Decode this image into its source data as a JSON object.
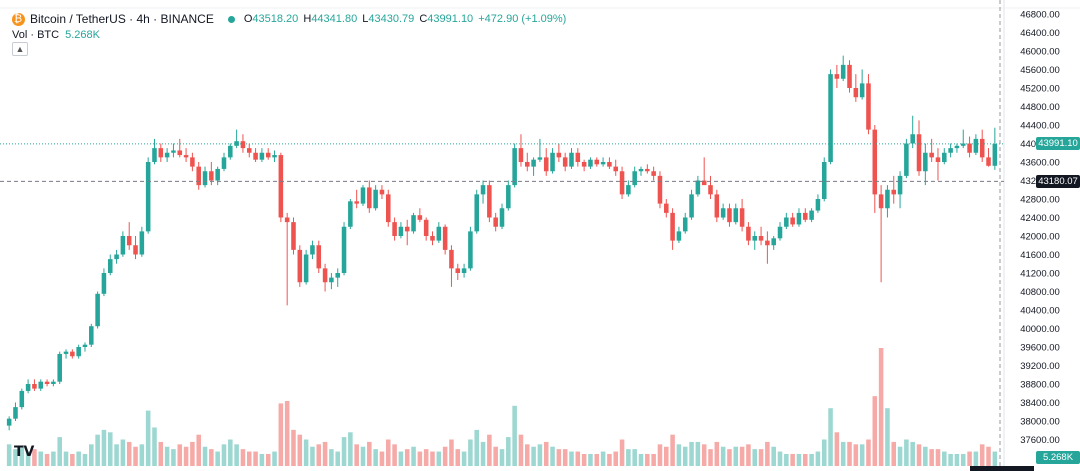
{
  "header": {
    "symbol_title": "Bitcoin / TetherUS · 4h · BINANCE",
    "ohlc": {
      "o_label": "O",
      "o_value": "43518.20",
      "h_label": "H",
      "h_value": "44341.80",
      "l_label": "L",
      "l_value": "43430.79",
      "c_label": "C",
      "c_value": "43991.10",
      "change": "+472.90 (+1.09%)"
    },
    "volume_label": "Vol · BTC",
    "volume_value": "5.268K",
    "collapse_icon": "chevron-up-icon",
    "logo": "TV"
  },
  "colors": {
    "up": "#26a69a",
    "down": "#ef5350",
    "volume_up": "#9dd7d1",
    "volume_down": "#f5aaa8",
    "last_price_tag": "#26a69a",
    "crosshair_tag": "#131722"
  },
  "chart_data": {
    "type": "candlestick",
    "timeframe": "4h",
    "ylim": [
      37200,
      46800
    ],
    "y_ticks": [
      "46800.00",
      "46400.00",
      "46000.00",
      "45600.00",
      "45200.00",
      "44800.00",
      "44400.00",
      "44000.00",
      "43600.00",
      "43200.00",
      "42800.00",
      "42400.00",
      "42000.00",
      "41600.00",
      "41200.00",
      "40800.00",
      "40400.00",
      "40000.00",
      "39600.00",
      "39200.00",
      "38800.00",
      "38400.00",
      "38000.00",
      "37600.00"
    ],
    "last_price": 43991.1,
    "last_price_label": "43991.10",
    "crosshair_price": 43180.07,
    "crosshair_price_label": "43180.07",
    "volume_label": "5.268K",
    "grid": false,
    "candles": [
      [
        37900,
        38100,
        37800,
        38050
      ],
      [
        38050,
        38400,
        38000,
        38300
      ],
      [
        38300,
        38700,
        38250,
        38650
      ],
      [
        38650,
        38900,
        38600,
        38800
      ],
      [
        38800,
        38900,
        38650,
        38700
      ],
      [
        38700,
        38900,
        38650,
        38850
      ],
      [
        38850,
        38900,
        38750,
        38800
      ],
      [
        38800,
        38900,
        38750,
        38850
      ],
      [
        38850,
        39500,
        38800,
        39450
      ],
      [
        39450,
        39550,
        39350,
        39500
      ],
      [
        39500,
        39550,
        39350,
        39400
      ],
      [
        39400,
        39650,
        39350,
        39600
      ],
      [
        39600,
        39700,
        39500,
        39650
      ],
      [
        39650,
        40100,
        39600,
        40050
      ],
      [
        40050,
        40800,
        40000,
        40750
      ],
      [
        40750,
        41300,
        40700,
        41200
      ],
      [
        41200,
        41600,
        41150,
        41500
      ],
      [
        41500,
        41700,
        41400,
        41600
      ],
      [
        41600,
        42100,
        41550,
        42000
      ],
      [
        42000,
        42300,
        41700,
        41800
      ],
      [
        41800,
        42000,
        41500,
        41600
      ],
      [
        41600,
        42200,
        41550,
        42100
      ],
      [
        42100,
        43700,
        42050,
        43600
      ],
      [
        43600,
        44100,
        43550,
        43900
      ],
      [
        43900,
        44000,
        43600,
        43700
      ],
      [
        43700,
        43900,
        43600,
        43800
      ],
      [
        43800,
        44000,
        43700,
        43850
      ],
      [
        43850,
        44100,
        43700,
        43750
      ],
      [
        43750,
        43900,
        43600,
        43700
      ],
      [
        43700,
        43800,
        43400,
        43500
      ],
      [
        43500,
        43600,
        43000,
        43100
      ],
      [
        43100,
        43500,
        43050,
        43400
      ],
      [
        43400,
        43600,
        43100,
        43200
      ],
      [
        43200,
        43500,
        43100,
        43450
      ],
      [
        43450,
        43800,
        43400,
        43700
      ],
      [
        43700,
        44000,
        43650,
        43950
      ],
      [
        43950,
        44300,
        43900,
        44050
      ],
      [
        44050,
        44200,
        43800,
        43900
      ],
      [
        43900,
        44000,
        43700,
        43800
      ],
      [
        43800,
        43900,
        43600,
        43650
      ],
      [
        43650,
        43900,
        43600,
        43800
      ],
      [
        43800,
        43900,
        43650,
        43700
      ],
      [
        43700,
        43850,
        43600,
        43750
      ],
      [
        43750,
        43800,
        42300,
        42400
      ],
      [
        42400,
        42500,
        40500,
        42300
      ],
      [
        42300,
        42400,
        41600,
        41700
      ],
      [
        41700,
        41800,
        40900,
        41000
      ],
      [
        41000,
        41700,
        40950,
        41600
      ],
      [
        41600,
        41900,
        41500,
        41800
      ],
      [
        41800,
        41900,
        41200,
        41300
      ],
      [
        41300,
        41400,
        40800,
        41000
      ],
      [
        41000,
        41200,
        40850,
        41100
      ],
      [
        41100,
        41300,
        40900,
        41200
      ],
      [
        41200,
        42300,
        41150,
        42200
      ],
      [
        42200,
        42800,
        42150,
        42750
      ],
      [
        42750,
        43000,
        42600,
        42700
      ],
      [
        42700,
        43100,
        42650,
        43050
      ],
      [
        43050,
        43200,
        42500,
        42600
      ],
      [
        42600,
        43100,
        42550,
        43000
      ],
      [
        43000,
        43100,
        42800,
        42900
      ],
      [
        42900,
        43000,
        42200,
        42300
      ],
      [
        42300,
        42400,
        41900,
        42000
      ],
      [
        42000,
        42300,
        41950,
        42200
      ],
      [
        42200,
        42350,
        41800,
        42100
      ],
      [
        42100,
        42500,
        42050,
        42450
      ],
      [
        42450,
        42600,
        42300,
        42350
      ],
      [
        42350,
        42400,
        41900,
        42000
      ],
      [
        42000,
        42100,
        41800,
        41900
      ],
      [
        41900,
        42300,
        41850,
        42200
      ],
      [
        42200,
        42250,
        41600,
        41700
      ],
      [
        41700,
        41800,
        40900,
        41300
      ],
      [
        41300,
        41400,
        41050,
        41200
      ],
      [
        41200,
        41400,
        41100,
        41300
      ],
      [
        41300,
        42200,
        41250,
        42100
      ],
      [
        42100,
        43000,
        42050,
        42900
      ],
      [
        42900,
        43200,
        42700,
        43100
      ],
      [
        43100,
        43200,
        42300,
        42400
      ],
      [
        42400,
        42500,
        42100,
        42200
      ],
      [
        42200,
        42700,
        42150,
        42600
      ],
      [
        42600,
        43200,
        42550,
        43100
      ],
      [
        43100,
        44000,
        43050,
        43900
      ],
      [
        43900,
        44200,
        43500,
        43600
      ],
      [
        43600,
        43800,
        43400,
        43500
      ],
      [
        43500,
        43700,
        43300,
        43650
      ],
      [
        43650,
        44100,
        43600,
        43700
      ],
      [
        43700,
        43900,
        43300,
        43400
      ],
      [
        43400,
        43900,
        43350,
        43800
      ],
      [
        43800,
        44000,
        43600,
        43700
      ],
      [
        43700,
        43800,
        43400,
        43500
      ],
      [
        43500,
        43900,
        43450,
        43800
      ],
      [
        43800,
        43900,
        43500,
        43600
      ],
      [
        43600,
        43650,
        43400,
        43500
      ],
      [
        43500,
        43700,
        43450,
        43650
      ],
      [
        43650,
        43700,
        43500,
        43550
      ],
      [
        43550,
        43700,
        43500,
        43600
      ],
      [
        43600,
        43700,
        43450,
        43500
      ],
      [
        43500,
        43650,
        43300,
        43400
      ],
      [
        43400,
        43500,
        42800,
        42900
      ],
      [
        42900,
        43200,
        42850,
        43100
      ],
      [
        43100,
        43500,
        43050,
        43400
      ],
      [
        43400,
        43500,
        43300,
        43450
      ],
      [
        43450,
        43550,
        43350,
        43400
      ],
      [
        43400,
        43500,
        43200,
        43300
      ],
      [
        43300,
        43400,
        42600,
        42700
      ],
      [
        42700,
        42800,
        42400,
        42500
      ],
      [
        42500,
        42600,
        41700,
        41900
      ],
      [
        41900,
        42200,
        41850,
        42100
      ],
      [
        42100,
        42500,
        42050,
        42400
      ],
      [
        42400,
        43000,
        42350,
        42900
      ],
      [
        42900,
        43300,
        42850,
        43200
      ],
      [
        43200,
        43700,
        43150,
        43100
      ],
      [
        43100,
        43300,
        42800,
        42900
      ],
      [
        42900,
        43000,
        42300,
        42400
      ],
      [
        42400,
        42700,
        42350,
        42600
      ],
      [
        42600,
        42700,
        42200,
        42300
      ],
      [
        42300,
        42700,
        42250,
        42600
      ],
      [
        42600,
        42800,
        42100,
        42200
      ],
      [
        42200,
        42300,
        41800,
        41900
      ],
      [
        41900,
        42100,
        41700,
        42000
      ],
      [
        42000,
        42200,
        41800,
        41900
      ],
      [
        41900,
        42100,
        41400,
        41800
      ],
      [
        41800,
        42000,
        41700,
        41950
      ],
      [
        41950,
        42300,
        41900,
        42200
      ],
      [
        42200,
        42500,
        42150,
        42400
      ],
      [
        42400,
        42500,
        42200,
        42250
      ],
      [
        42250,
        42600,
        42200,
        42500
      ],
      [
        42500,
        42600,
        42300,
        42350
      ],
      [
        42350,
        42600,
        42300,
        42550
      ],
      [
        42550,
        42900,
        42500,
        42800
      ],
      [
        42800,
        43700,
        42750,
        43600
      ],
      [
        43600,
        45600,
        43550,
        45500
      ],
      [
        45500,
        45700,
        45200,
        45400
      ],
      [
        45400,
        45900,
        45350,
        45700
      ],
      [
        45700,
        45800,
        45100,
        45200
      ],
      [
        45200,
        45500,
        44900,
        45000
      ],
      [
        45000,
        45600,
        44950,
        45300
      ],
      [
        45300,
        45500,
        44200,
        44300
      ],
      [
        44300,
        44400,
        42500,
        42900
      ],
      [
        42900,
        43100,
        41000,
        42600
      ],
      [
        42600,
        43100,
        42400,
        43000
      ],
      [
        43000,
        43300,
        42700,
        42900
      ],
      [
        42900,
        43400,
        42600,
        43300
      ],
      [
        43300,
        44100,
        43250,
        44000
      ],
      [
        44000,
        44600,
        43900,
        44200
      ],
      [
        44200,
        44500,
        43300,
        43400
      ],
      [
        43400,
        44000,
        43100,
        43800
      ],
      [
        43800,
        44100,
        43600,
        43700
      ],
      [
        43700,
        43900,
        43200,
        43600
      ],
      [
        43600,
        43900,
        43550,
        43800
      ],
      [
        43800,
        44000,
        43700,
        43900
      ],
      [
        43900,
        44000,
        43800,
        43950
      ],
      [
        43950,
        44300,
        43900,
        44000
      ],
      [
        44000,
        44150,
        43700,
        43800
      ],
      [
        43800,
        44200,
        43750,
        44100
      ],
      [
        44100,
        44300,
        43600,
        43700
      ],
      [
        43700,
        43900,
        43500,
        43518
      ],
      [
        43518,
        44341,
        43430,
        43991
      ]
    ],
    "volume": [
      0.9,
      0.7,
      0.8,
      0.6,
      0.7,
      0.6,
      0.5,
      0.6,
      1.2,
      0.6,
      0.5,
      0.6,
      0.5,
      0.9,
      1.3,
      1.5,
      1.4,
      0.9,
      1.1,
      1.0,
      0.8,
      0.9,
      2.3,
      1.6,
      1.0,
      0.8,
      0.7,
      0.9,
      0.8,
      1.0,
      1.3,
      0.8,
      0.7,
      0.6,
      0.9,
      1.1,
      0.9,
      0.7,
      0.6,
      0.6,
      0.5,
      0.5,
      0.6,
      2.6,
      2.7,
      1.5,
      1.3,
      1.1,
      0.8,
      0.9,
      1.0,
      0.7,
      0.6,
      1.2,
      1.4,
      0.9,
      0.8,
      1.0,
      0.7,
      0.6,
      1.1,
      0.9,
      0.6,
      0.7,
      0.8,
      0.6,
      0.7,
      0.6,
      0.6,
      0.8,
      1.1,
      0.7,
      0.6,
      1.1,
      1.5,
      1.0,
      1.3,
      0.8,
      0.7,
      1.2,
      2.5,
      1.3,
      0.9,
      0.8,
      0.9,
      1.0,
      0.8,
      0.7,
      0.7,
      0.6,
      0.6,
      0.5,
      0.5,
      0.5,
      0.6,
      0.5,
      0.6,
      1.1,
      0.7,
      0.7,
      0.5,
      0.5,
      0.5,
      0.9,
      0.8,
      1.3,
      0.9,
      0.8,
      1.0,
      1.0,
      0.9,
      0.7,
      1.0,
      0.8,
      0.7,
      0.8,
      0.8,
      0.9,
      0.7,
      0.7,
      1.0,
      0.8,
      0.6,
      0.5,
      0.5,
      0.5,
      0.5,
      0.5,
      0.6,
      1.1,
      2.4,
      1.4,
      1.0,
      1.0,
      0.9,
      0.9,
      1.1,
      2.9,
      4.9,
      2.4,
      1.0,
      0.8,
      1.1,
      1.0,
      0.9,
      0.8,
      0.7,
      0.7,
      0.6,
      0.5,
      0.5,
      0.5,
      0.6,
      0.6,
      0.9,
      0.8,
      0.6
    ]
  }
}
